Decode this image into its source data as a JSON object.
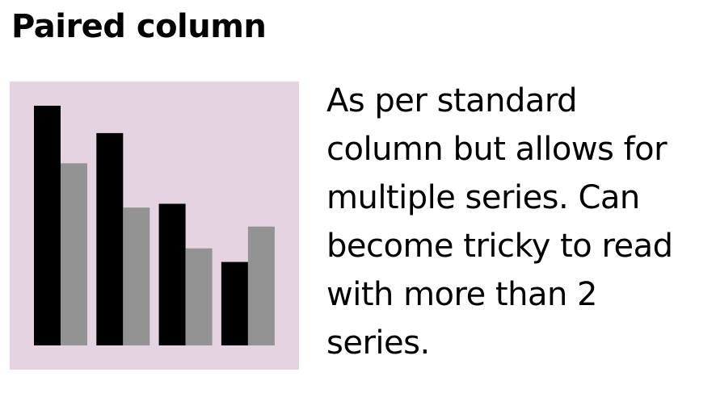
{
  "title": "Paired column",
  "description_lines": [
    "As per standard",
    "column but allows for",
    "multiple series. Can",
    "become tricky to read",
    "with more than 2",
    "series."
  ],
  "colors": {
    "panel_background": "#e4d3e0",
    "series_primary": "#000000",
    "series_secondary": "#939393"
  },
  "chart_data": {
    "type": "bar",
    "categories": [
      "",
      "",
      "",
      ""
    ],
    "series": [
      {
        "values": [
          100,
          88.6,
          59.1,
          34.8
        ]
      },
      {
        "values": [
          76.0,
          57.5,
          40.5,
          49.6
        ]
      }
    ],
    "ylim": [
      0,
      100
    ],
    "grid": false,
    "legend": "none"
  }
}
